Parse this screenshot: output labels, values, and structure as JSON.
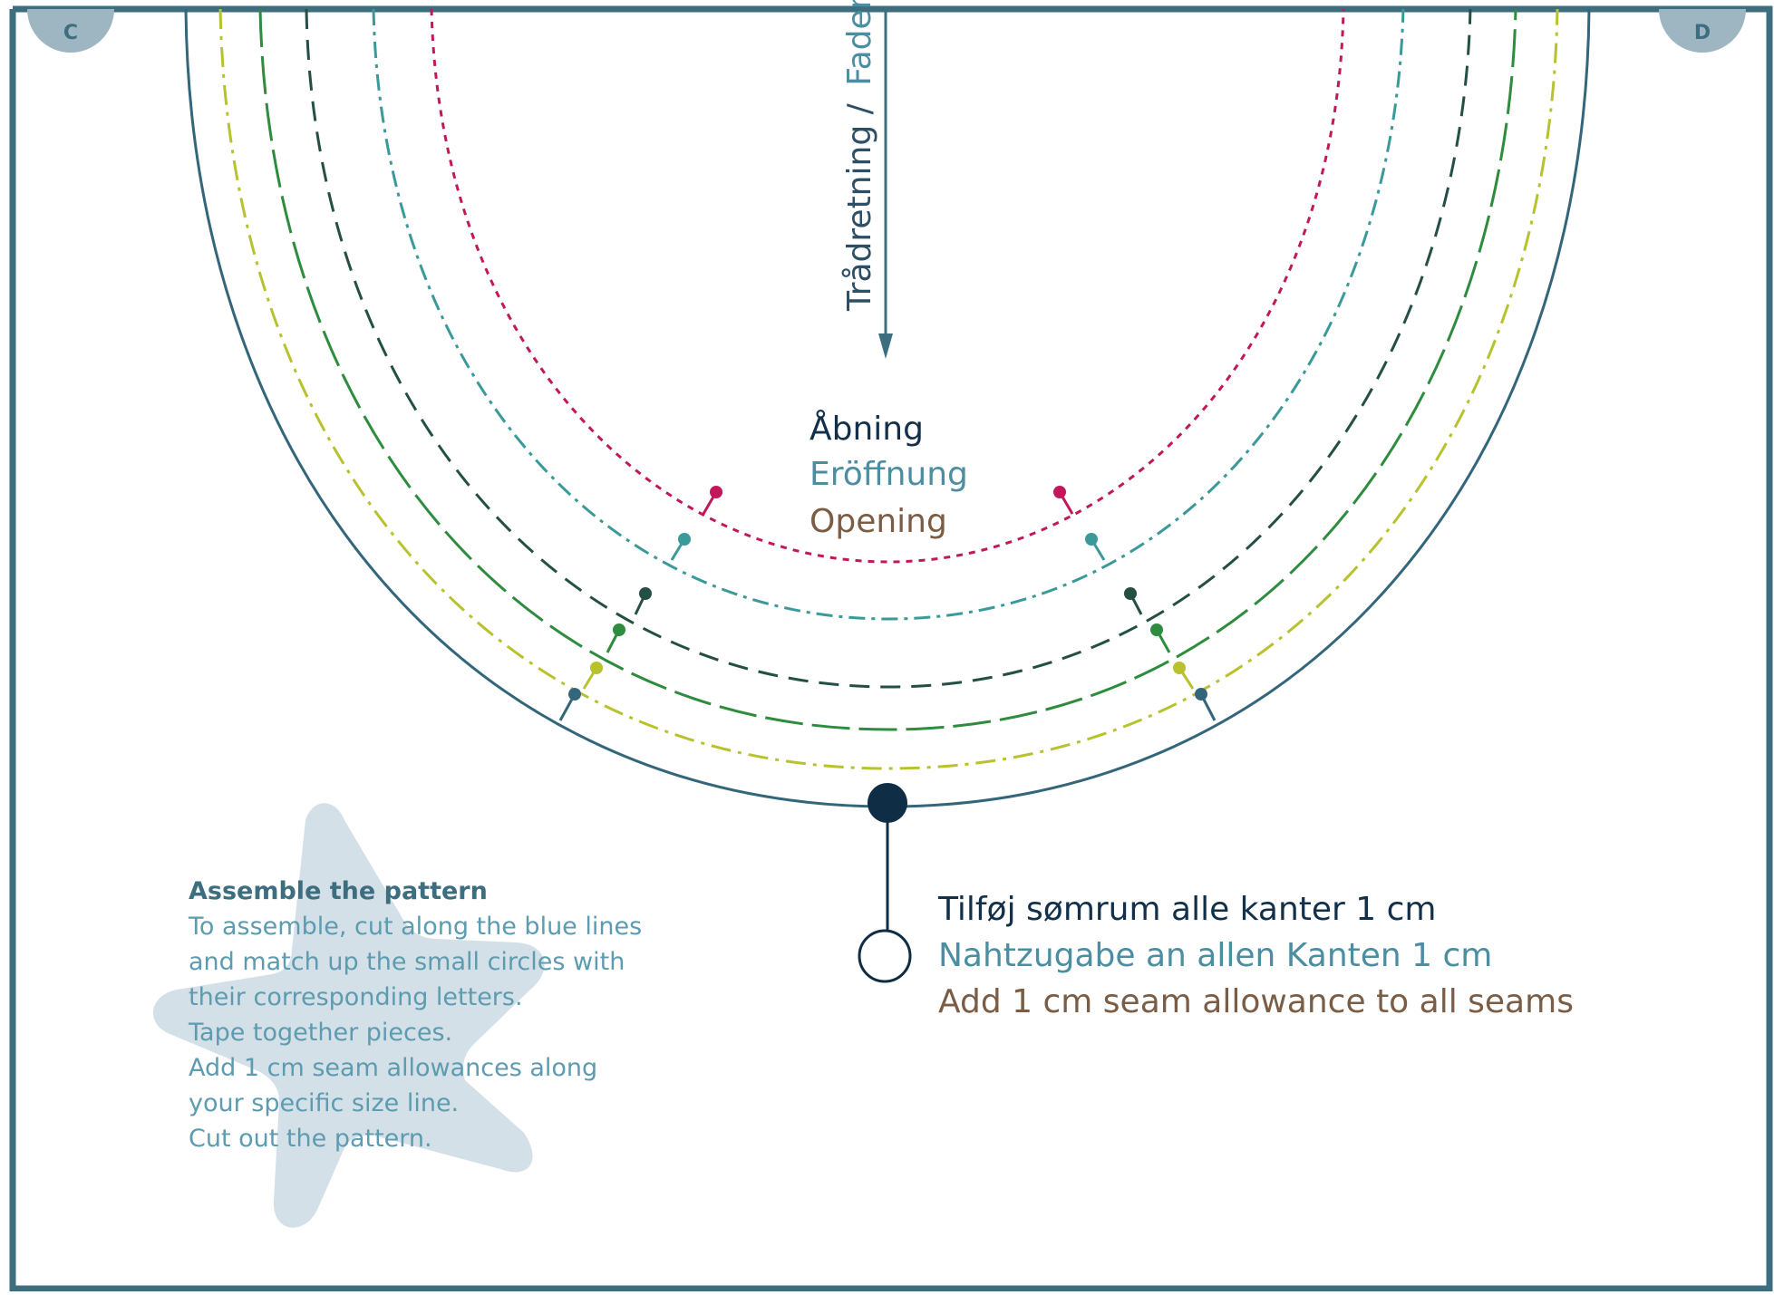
{
  "corner_markers": {
    "left": "C",
    "right": "D"
  },
  "grainline": {
    "label_dk": "Trådretning /",
    "label_de": "Faden"
  },
  "opening": {
    "dk": "Åbning",
    "de": "Eröffnung",
    "en": "Opening"
  },
  "seam_note": {
    "dk": "Tilføj sømrum alle kanter 1 cm",
    "de": "Nahtzugabe an allen Kanten 1 cm",
    "en": "Add 1 cm seam allowance to all seams"
  },
  "assemble": {
    "title": "Assemble the pattern",
    "lines": [
      "To assemble, cut along the blue lines",
      "and match up the small circles with",
      "their corresponding letters.",
      "Tape together pieces.",
      "Add 1 cm seam allowances along",
      "your specific size line.",
      "Cut out the pattern."
    ]
  },
  "colors": {
    "frame": "#3d6e80",
    "navy": "#12304a",
    "teal_text": "#4b8ea2",
    "brown_text": "#7b5d45",
    "star": "#d4e0e7",
    "badge": "#9db6c2",
    "size_outer": "#33667a",
    "size_lime": "#b8c22e",
    "size_green": "#2e8c3e",
    "size_darkgreen": "#244f44",
    "size_teal": "#3a9a9a",
    "size_magenta": "#c2185b"
  }
}
